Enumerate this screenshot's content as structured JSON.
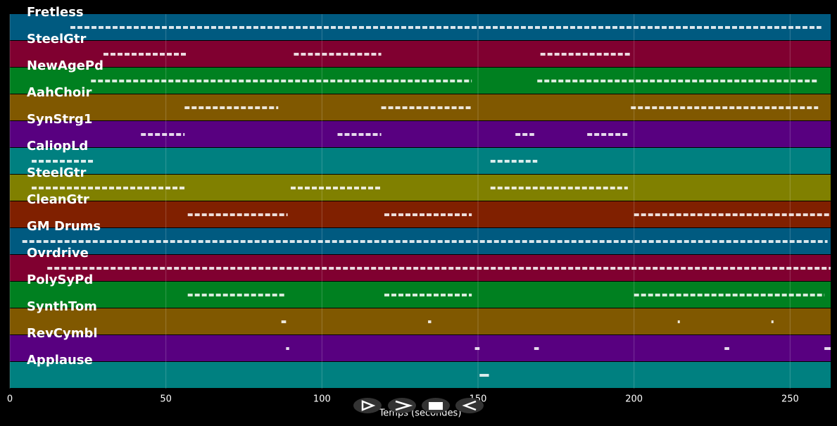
{
  "axis": {
    "label": "Temps (secondes)",
    "xlim": [
      0,
      263
    ],
    "xticks": [
      0,
      50,
      100,
      150,
      200,
      250
    ]
  },
  "tracks": [
    {
      "name": "Fretless",
      "color": "#005a80",
      "segments": [
        [
          19.4,
          260
        ]
      ]
    },
    {
      "name": "SteelGtr",
      "color": "#800030",
      "segments": [
        [
          30,
          57
        ],
        [
          91,
          119
        ],
        [
          170,
          199
        ]
      ]
    },
    {
      "name": "NewAgePd",
      "color": "#008020",
      "segments": [
        [
          26,
          148
        ],
        [
          169,
          259
        ]
      ]
    },
    {
      "name": "AahChoir",
      "color": "#805800",
      "segments": [
        [
          56,
          86
        ],
        [
          119,
          148
        ],
        [
          199,
          259
        ]
      ]
    },
    {
      "name": "SynStrg1",
      "color": "#580080",
      "segments": [
        [
          42,
          56
        ],
        [
          105,
          119
        ],
        [
          162,
          168
        ],
        [
          185,
          198
        ]
      ]
    },
    {
      "name": "CaliopLd",
      "color": "#008080",
      "segments": [
        [
          7,
          27
        ],
        [
          154,
          169
        ]
      ]
    },
    {
      "name": "SteelGtr",
      "color": "#808000",
      "segments": [
        [
          7,
          56
        ],
        [
          90,
          119
        ],
        [
          154,
          198
        ]
      ]
    },
    {
      "name": "CleanGtr",
      "color": "#802000",
      "segments": [
        [
          57,
          89
        ],
        [
          120,
          148
        ],
        [
          200,
          263
        ]
      ]
    },
    {
      "name": "GM Drums",
      "color": "#005a80",
      "segments": [
        [
          4,
          262
        ]
      ]
    },
    {
      "name": "Ovrdrive",
      "color": "#800030",
      "segments": [
        [
          12,
          263
        ]
      ]
    },
    {
      "name": "PolySyPd",
      "color": "#008020",
      "segments": [
        [
          57,
          88
        ],
        [
          120,
          148
        ],
        [
          200,
          261
        ]
      ]
    },
    {
      "name": "SynthTom",
      "color": "#805800",
      "segments": [
        [
          87,
          88.5
        ],
        [
          134,
          135
        ],
        [
          214,
          214.5
        ],
        [
          244,
          244.5
        ]
      ]
    },
    {
      "name": "RevCymbl",
      "color": "#580080",
      "segments": [
        [
          88.5,
          89.5
        ],
        [
          149,
          150.5
        ],
        [
          168,
          169.5
        ],
        [
          229,
          230.5
        ],
        [
          261,
          263
        ]
      ]
    },
    {
      "name": "Applause",
      "color": "#008080",
      "segments": [
        [
          150.5,
          153.5
        ]
      ]
    }
  ]
}
